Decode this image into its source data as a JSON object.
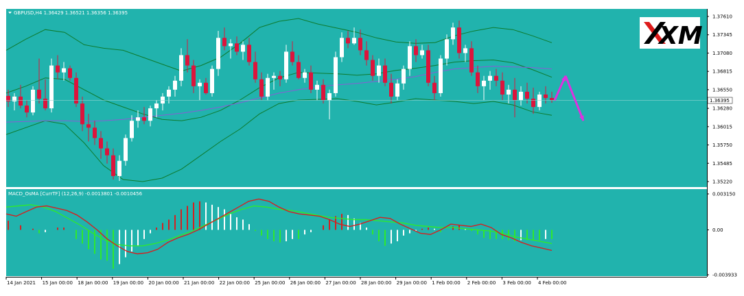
{
  "main_title": "GBPUSD,H4  1.36429 1.36521 1.36356 1.36395",
  "indicator_title": "MACD_OsMA [CurrTF] (12,26,9) -0.0013801 -0.0010456",
  "logo_text": "XM",
  "price_tag": "1.36395",
  "colors": {
    "background": "#21b3ad",
    "bull_candle": "#ffffff",
    "bear_candle": "#dc143c",
    "bollinger": "#0d7a2c",
    "moving_average": "#8a5cd6",
    "macd_line": "#d61f1f",
    "signal_line": "#2ee82e",
    "osma_positive": "#d61f1f",
    "osma_negative": "#2ee82e",
    "osma_flat": "#ffffff",
    "arrow": "#e030e0",
    "logo_red": "#dd1b1b",
    "logo_black": "#000000"
  },
  "chart_data": {
    "type": "candlestick",
    "symbol": "GBPUSD",
    "timeframe": "H4",
    "price_axis": {
      "ticks": [
        "1.37610",
        "1.37345",
        "1.37080",
        "1.36815",
        "1.36550",
        "1.36280",
        "1.36015",
        "1.35750",
        "1.35485",
        "1.35220"
      ],
      "range": [
        1.3522,
        1.3761
      ],
      "current": 1.36395
    },
    "time_axis": {
      "labels": [
        "14 Jan 2021",
        "15 Jan 00:00",
        "18 Jan 00:00",
        "19 Jan 00:00",
        "20 Jan 00:00",
        "21 Jan 00:00",
        "22 Jan 00:00",
        "25 Jan 00:00",
        "26 Jan 00:00",
        "27 Jan 00:00",
        "28 Jan 00:00",
        "29 Jan 00:00",
        "1 Feb 00:00",
        "2 Feb 00:00",
        "3 Feb 00:00",
        "4 Feb 00:00"
      ]
    },
    "candles": [
      [
        1.3646,
        1.3655,
        1.363,
        1.3638
      ],
      [
        1.3638,
        1.365,
        1.3625,
        1.3645
      ],
      [
        1.3645,
        1.3662,
        1.3628,
        1.3632
      ],
      [
        1.3632,
        1.364,
        1.3615,
        1.3622
      ],
      [
        1.3622,
        1.366,
        1.3618,
        1.3655
      ],
      [
        1.3655,
        1.37,
        1.3635,
        1.3642
      ],
      [
        1.3642,
        1.367,
        1.3625,
        1.3628
      ],
      [
        1.3628,
        1.37,
        1.3622,
        1.369
      ],
      [
        1.369,
        1.3705,
        1.367,
        1.368
      ],
      [
        1.368,
        1.3695,
        1.3668,
        1.3686
      ],
      [
        1.3686,
        1.369,
        1.3668,
        1.3672
      ],
      [
        1.3672,
        1.368,
        1.363,
        1.3635
      ],
      [
        1.3635,
        1.3645,
        1.3595,
        1.3605
      ],
      [
        1.3605,
        1.362,
        1.358,
        1.36
      ],
      [
        1.36,
        1.361,
        1.3575,
        1.3585
      ],
      [
        1.3585,
        1.3595,
        1.3555,
        1.357
      ],
      [
        1.357,
        1.358,
        1.3548,
        1.356
      ],
      [
        1.356,
        1.357,
        1.3525,
        1.353
      ],
      [
        1.353,
        1.356,
        1.3523,
        1.3552
      ],
      [
        1.3552,
        1.359,
        1.3545,
        1.3585
      ],
      [
        1.3585,
        1.3618,
        1.358,
        1.361
      ],
      [
        1.361,
        1.3625,
        1.36,
        1.3615
      ],
      [
        1.3615,
        1.363,
        1.3605,
        1.361
      ],
      [
        1.361,
        1.3632,
        1.3602,
        1.3628
      ],
      [
        1.3628,
        1.364,
        1.3615,
        1.3635
      ],
      [
        1.3635,
        1.365,
        1.3625,
        1.3645
      ],
      [
        1.3645,
        1.366,
        1.3635,
        1.3655
      ],
      [
        1.3655,
        1.3675,
        1.3645,
        1.3668
      ],
      [
        1.3668,
        1.3715,
        1.366,
        1.3705
      ],
      [
        1.3705,
        1.3728,
        1.368,
        1.369
      ],
      [
        1.369,
        1.3698,
        1.365,
        1.366
      ],
      [
        1.366,
        1.367,
        1.364,
        1.3665
      ],
      [
        1.3665,
        1.3672,
        1.3648,
        1.365
      ],
      [
        1.365,
        1.369,
        1.3645,
        1.3685
      ],
      [
        1.3685,
        1.374,
        1.3675,
        1.373
      ],
      [
        1.373,
        1.3745,
        1.3712,
        1.3718
      ],
      [
        1.3718,
        1.3728,
        1.37,
        1.3722
      ],
      [
        1.3722,
        1.3732,
        1.3705,
        1.371
      ],
      [
        1.371,
        1.3725,
        1.3698,
        1.372
      ],
      [
        1.372,
        1.373,
        1.369,
        1.3695
      ],
      [
        1.3695,
        1.371,
        1.3665,
        1.367
      ],
      [
        1.367,
        1.368,
        1.364,
        1.3645
      ],
      [
        1.3645,
        1.3678,
        1.364,
        1.3672
      ],
      [
        1.3672,
        1.368,
        1.3655,
        1.3675
      ],
      [
        1.3675,
        1.3682,
        1.366,
        1.367
      ],
      [
        1.367,
        1.372,
        1.3665,
        1.371
      ],
      [
        1.371,
        1.3725,
        1.369,
        1.3695
      ],
      [
        1.3695,
        1.3705,
        1.367,
        1.3672
      ],
      [
        1.3672,
        1.3685,
        1.3665,
        1.368
      ],
      [
        1.368,
        1.369,
        1.365,
        1.3655
      ],
      [
        1.3655,
        1.3668,
        1.364,
        1.3662
      ],
      [
        1.3662,
        1.367,
        1.3635,
        1.364
      ],
      [
        1.364,
        1.3655,
        1.3612,
        1.365
      ],
      [
        1.365,
        1.371,
        1.3645,
        1.3702
      ],
      [
        1.3702,
        1.3738,
        1.3695,
        1.373
      ],
      [
        1.373,
        1.374,
        1.3715,
        1.3722
      ],
      [
        1.3722,
        1.3745,
        1.372,
        1.373
      ],
      [
        1.373,
        1.3742,
        1.3705,
        1.3712
      ],
      [
        1.3712,
        1.3725,
        1.369,
        1.3698
      ],
      [
        1.3698,
        1.3705,
        1.3668,
        1.3675
      ],
      [
        1.3675,
        1.37,
        1.3665,
        1.369
      ],
      [
        1.369,
        1.37,
        1.366,
        1.3665
      ],
      [
        1.3665,
        1.3678,
        1.3635,
        1.3645
      ],
      [
        1.3645,
        1.367,
        1.364,
        1.3664
      ],
      [
        1.3664,
        1.369,
        1.3655,
        1.3685
      ],
      [
        1.3685,
        1.3725,
        1.3675,
        1.3718
      ],
      [
        1.3718,
        1.3728,
        1.3695,
        1.3705
      ],
      [
        1.3705,
        1.372,
        1.37,
        1.3712
      ],
      [
        1.3712,
        1.372,
        1.366,
        1.3665
      ],
      [
        1.3665,
        1.3675,
        1.364,
        1.365
      ],
      [
        1.365,
        1.3705,
        1.3645,
        1.37
      ],
      [
        1.37,
        1.3735,
        1.369,
        1.3728
      ],
      [
        1.3728,
        1.3752,
        1.372,
        1.3745
      ],
      [
        1.3745,
        1.3755,
        1.37,
        1.3708
      ],
      [
        1.3708,
        1.372,
        1.3695,
        1.3715
      ],
      [
        1.3715,
        1.3725,
        1.3675,
        1.368
      ],
      [
        1.368,
        1.369,
        1.365,
        1.366
      ],
      [
        1.366,
        1.3675,
        1.364,
        1.3668
      ],
      [
        1.3668,
        1.3682,
        1.3655,
        1.3675
      ],
      [
        1.3675,
        1.3685,
        1.366,
        1.3668
      ],
      [
        1.3668,
        1.368,
        1.364,
        1.3648
      ],
      [
        1.3648,
        1.3662,
        1.3635,
        1.3655
      ],
      [
        1.3655,
        1.3672,
        1.3615,
        1.364
      ],
      [
        1.364,
        1.366,
        1.3632,
        1.3652
      ],
      [
        1.3652,
        1.3665,
        1.3635,
        1.3642
      ],
      [
        1.3642,
        1.3658,
        1.362,
        1.363
      ],
      [
        1.363,
        1.3652,
        1.3625,
        1.3648
      ],
      [
        1.3648,
        1.366,
        1.3635,
        1.3643
      ],
      [
        1.3643,
        1.3652,
        1.3636,
        1.364
      ]
    ],
    "bollinger_upper": [
      1.3712,
      1.3728,
      1.3742,
      1.3738,
      1.372,
      1.3715,
      1.3712,
      1.3702,
      1.3692,
      1.3682,
      1.369,
      1.3702,
      1.3722,
      1.3745,
      1.3754,
      1.3758,
      1.375,
      1.3744,
      1.3738,
      1.373,
      1.3724,
      1.3722,
      1.3723,
      1.3733,
      1.374,
      1.3745,
      1.3742,
      1.3733,
      1.3723
    ],
    "bollinger_mid": [
      1.365,
      1.366,
      1.3672,
      1.367,
      1.3655,
      1.364,
      1.363,
      1.362,
      1.3612,
      1.361,
      1.3615,
      1.3625,
      1.364,
      1.3658,
      1.3672,
      1.368,
      1.3679,
      1.3678,
      1.3676,
      1.3678,
      1.3683,
      1.3686,
      1.369,
      1.3695,
      1.3697,
      1.3698,
      1.3694,
      1.3684,
      1.3673
    ],
    "bollinger_lower": [
      1.359,
      1.36,
      1.361,
      1.3605,
      1.3578,
      1.3545,
      1.3525,
      1.3522,
      1.3527,
      1.354,
      1.356,
      1.358,
      1.3598,
      1.362,
      1.3635,
      1.364,
      1.3641,
      1.3642,
      1.3638,
      1.3633,
      1.3637,
      1.3642,
      1.364,
      1.3638,
      1.3635,
      1.3638,
      1.3633,
      1.3623,
      1.3618
    ],
    "moving_average": [
      1.3608,
      1.3609,
      1.361,
      1.361,
      1.3609,
      1.361,
      1.3612,
      1.3615,
      1.3618,
      1.3621,
      1.3625,
      1.363,
      1.3636,
      1.3643,
      1.365,
      1.3655,
      1.3659,
      1.3662,
      1.3664,
      1.3667,
      1.367,
      1.3674,
      1.368,
      1.3685,
      1.3687,
      1.3689,
      1.3688,
      1.3687,
      1.3685
    ],
    "forecast_arrow": [
      [
        1.36395,
        1.3675
      ],
      [
        1.3675,
        1.361
      ]
    ],
    "indicator": {
      "name": "MACD_OsMA",
      "ticks": [
        "0.003150",
        "0.00",
        "-0.003933"
      ],
      "range": [
        -0.003933,
        0.00315
      ],
      "histogram": [
        0.0008,
        0.0,
        0.0004,
        0.0,
        0.0001,
        -0.0003,
        -0.0002,
        0.0,
        0.0002,
        0.0002,
        0.0,
        -0.0008,
        -0.0012,
        -0.0017,
        -0.0021,
        -0.0026,
        -0.0027,
        -0.0034,
        -0.003,
        -0.0024,
        -0.0019,
        -0.0014,
        -0.0008,
        -0.0003,
        0.0002,
        0.0006,
        0.0009,
        0.0013,
        0.0018,
        0.0021,
        0.0024,
        0.0025,
        0.0024,
        0.0022,
        0.002,
        0.0018,
        0.0014,
        0.0011,
        0.0009,
        0.0005,
        -0.0001,
        -0.0005,
        -0.0008,
        -0.001,
        -0.0011,
        -0.001,
        -0.0008,
        -0.0008,
        -0.0004,
        -0.0002,
        0.0,
        0.0004,
        0.0009,
        0.0012,
        0.0014,
        0.0013,
        0.001,
        0.0006,
        0.0002,
        -0.0004,
        -0.001,
        -0.0014,
        -0.0012,
        -0.001,
        -0.0005,
        -0.0003,
        -0.0001,
        0.0001,
        0.0002,
        0.0001,
        -0.0002,
        0.0,
        0.0003,
        0.0004,
        0.0001,
        -0.0001,
        -0.0004,
        -0.0007,
        -0.0008,
        -0.0008,
        -0.0008,
        -0.0009,
        -0.001,
        -0.0009,
        -0.0009,
        -0.0009,
        -0.0009,
        -0.0008,
        -0.0008
      ],
      "macd": [
        0.0014,
        0.0012,
        0.0016,
        0.002,
        0.0021,
        0.0019,
        0.0017,
        0.0013,
        0.0007,
        0.0,
        -0.0008,
        -0.0014,
        -0.0019,
        -0.0021,
        -0.002,
        -0.0017,
        -0.0011,
        -0.0007,
        -0.0004,
        0.0,
        0.0005,
        0.001,
        0.0015,
        0.002,
        0.0025,
        0.0027,
        0.0025,
        0.002,
        0.0016,
        0.0014,
        0.0013,
        0.0012,
        0.0009,
        0.0005,
        0.0003,
        0.0005,
        0.0008,
        0.0011,
        0.001,
        0.0005,
        0.0001,
        -0.0003,
        -0.0004,
        0.0,
        0.0005,
        0.0004,
        0.0003,
        0.0005,
        0.0002,
        -0.0004,
        -0.0007,
        -0.0011,
        -0.0014,
        -0.0016,
        -0.0018
      ],
      "signal": [
        0.002,
        0.0021,
        0.0022,
        0.002,
        0.0016,
        0.001,
        0.0004,
        -0.0003,
        -0.0009,
        -0.0013,
        -0.0014,
        -0.0014,
        -0.0012,
        -0.0009,
        -0.0005,
        -0.0001,
        0.0004,
        0.0009,
        0.0014,
        0.0018,
        0.0021,
        0.002,
        0.0018,
        0.0017,
        0.0015,
        0.0013,
        0.0011,
        0.001,
        0.0009,
        0.0009,
        0.0008,
        0.0007,
        0.0006,
        0.0004,
        0.0003,
        0.0002,
        0.0002,
        0.0001,
        0.0,
        -0.0001,
        -0.0003,
        -0.0006,
        -0.0008,
        -0.001,
        -0.0012
      ]
    }
  }
}
